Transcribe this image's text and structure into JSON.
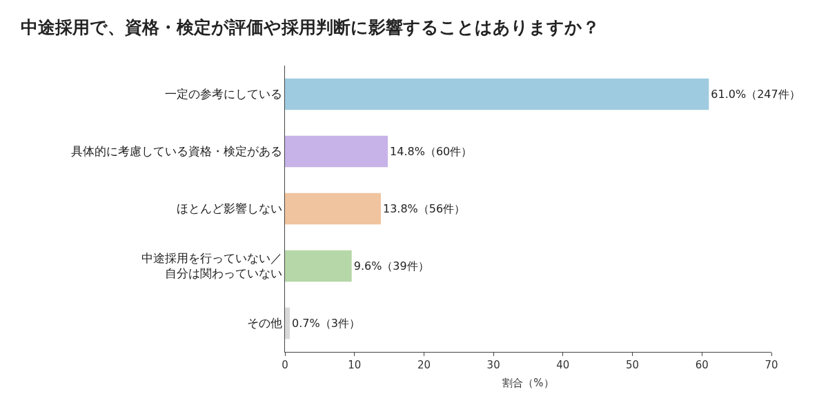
{
  "chart_data": {
    "type": "bar",
    "orientation": "horizontal",
    "title": "中途採用で、資格・検定が評価や採用判断に影響することはありますか？",
    "xlabel": "割合（%）",
    "categories": [
      "一定の参考にしている",
      "具体的に考慮している資格・検定がある",
      "ほとんど影響しない",
      "中途採用を行っていない／自分は関わっていない",
      "その他"
    ],
    "values": [
      61.0,
      14.8,
      13.8,
      9.6,
      0.7
    ],
    "colors": [
      "#9fcbe0",
      "#c8b3e8",
      "#f0c49f",
      "#b6d7a8",
      "#d9d9d9"
    ],
    "value_labels": [
      "61.0%（247件）",
      "14.8%（60件）",
      "13.8%（56件）",
      "9.6%（39件）",
      "0.7%（3件）"
    ],
    "xlim": [
      0,
      70
    ],
    "xticks": [
      0,
      10,
      20,
      30,
      40,
      50,
      60,
      70
    ],
    "grid": false
  }
}
